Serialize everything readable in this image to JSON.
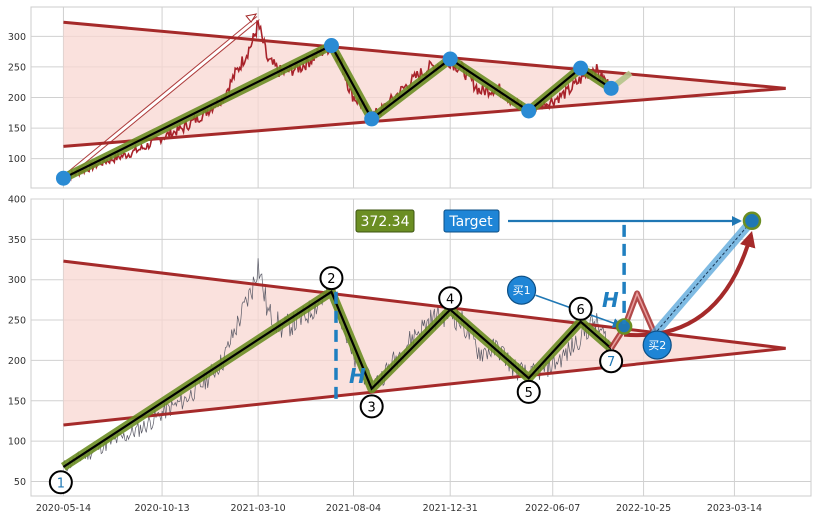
{
  "colors": {
    "price_top": "#a8222a",
    "price_bottom": "#5a5a66",
    "triangle_line": "#a52a2a",
    "triangle_fill": "#f8d7d2",
    "zigzag_outer": "#6b8e23",
    "zigzag_inner": "#000000",
    "pivot_top": "#2a8bd4",
    "accent_blue": "#1f77b4",
    "dash_blue": "#1f7fc0",
    "box_green": "#6b8e23",
    "box_blue": "#1f85d6",
    "grid": "#d0d0d0"
  },
  "chart_data": [
    {
      "type": "line",
      "panel": "top",
      "ylim": [
        52,
        348
      ],
      "x": [
        "2020-05-14",
        "2020-06-15",
        "2020-07-15",
        "2020-08-15",
        "2020-09-15",
        "2020-10-13",
        "2020-11-15",
        "2020-12-15",
        "2021-01-15",
        "2021-02-01",
        "2021-02-15",
        "2021-03-01",
        "2021-03-10",
        "2021-03-25",
        "2021-04-15",
        "2021-05-15",
        "2021-06-15",
        "2021-07-01",
        "2021-07-15",
        "2021-08-01",
        "2021-08-15",
        "2021-09-01",
        "2021-09-15",
        "2021-10-01",
        "2021-10-20",
        "2021-11-10",
        "2021-12-01",
        "2021-12-31",
        "2022-01-20",
        "2022-02-15",
        "2022-03-15",
        "2022-04-10",
        "2022-05-01",
        "2022-06-07",
        "2022-07-01",
        "2022-07-20",
        "2022-08-10",
        "2022-08-25",
        "2022-09-05"
      ],
      "series": [
        {
          "role": "price",
          "values": [
            68,
            82,
            95,
            105,
            118,
            135,
            150,
            172,
            200,
            235,
            262,
            290,
            320,
            260,
            240,
            250,
            275,
            285,
            260,
            205,
            190,
            170,
            178,
            195,
            215,
            235,
            250,
            260,
            245,
            210,
            215,
            190,
            180,
            195,
            210,
            230,
            248,
            230,
            215
          ]
        }
      ],
      "zigzag": {
        "x": [
          "2020-05-14",
          "2021-07-01",
          "2021-09-01",
          "2021-12-31",
          "2022-05-01",
          "2022-07-20",
          "2022-09-05"
        ],
        "values": [
          68,
          285,
          165,
          263,
          178,
          248,
          215
        ]
      },
      "pivots": {
        "x": [
          "2020-05-14",
          "2021-07-01",
          "2021-09-01",
          "2021-12-31",
          "2022-05-01",
          "2022-07-20",
          "2022-09-05"
        ],
        "values": [
          68,
          285,
          165,
          263,
          178,
          248,
          215
        ]
      },
      "triangle": {
        "upper": {
          "x": [
            "2020-05-14",
            "2023-06-01"
          ],
          "values": [
            323,
            215
          ]
        },
        "lower": {
          "x": [
            "2020-05-14",
            "2023-06-01"
          ],
          "values": [
            120,
            215
          ]
        }
      },
      "yticks": [
        100,
        150,
        200,
        250,
        300
      ]
    },
    {
      "type": "line",
      "panel": "bottom",
      "ylim": [
        32,
        400
      ],
      "x": [
        "2020-05-14",
        "2020-06-15",
        "2020-07-15",
        "2020-08-15",
        "2020-09-15",
        "2020-10-13",
        "2020-11-15",
        "2020-12-15",
        "2021-01-15",
        "2021-02-01",
        "2021-02-15",
        "2021-03-01",
        "2021-03-10",
        "2021-03-25",
        "2021-04-15",
        "2021-05-15",
        "2021-06-15",
        "2021-07-01",
        "2021-07-15",
        "2021-08-01",
        "2021-08-15",
        "2021-09-01",
        "2021-09-15",
        "2021-10-01",
        "2021-10-20",
        "2021-11-10",
        "2021-12-01",
        "2021-12-31",
        "2022-01-20",
        "2022-02-15",
        "2022-03-15",
        "2022-04-10",
        "2022-05-01",
        "2022-06-07",
        "2022-07-01",
        "2022-07-20",
        "2022-08-10",
        "2022-08-25",
        "2022-09-05"
      ],
      "series": [
        {
          "role": "price",
          "values": [
            68,
            82,
            95,
            105,
            118,
            135,
            150,
            172,
            200,
            235,
            262,
            290,
            320,
            260,
            240,
            250,
            275,
            285,
            260,
            205,
            190,
            170,
            178,
            195,
            215,
            235,
            250,
            260,
            245,
            210,
            215,
            190,
            180,
            195,
            210,
            230,
            248,
            230,
            215
          ]
        }
      ],
      "zigzag": {
        "x": [
          "2020-05-14",
          "2021-07-01",
          "2021-09-01",
          "2021-12-31",
          "2022-05-01",
          "2022-07-20",
          "2022-09-05"
        ],
        "values": [
          68,
          285,
          165,
          263,
          178,
          248,
          215
        ]
      },
      "pivot_labels": [
        {
          "label": "1",
          "x": "2020-05-10",
          "value": 49
        },
        {
          "label": "2",
          "x": "2021-07-01",
          "value": 302
        },
        {
          "label": "3",
          "x": "2021-09-01",
          "value": 143
        },
        {
          "label": "4",
          "x": "2021-12-31",
          "value": 277
        },
        {
          "label": "5",
          "x": "2022-05-01",
          "value": 161
        },
        {
          "label": "6",
          "x": "2022-07-20",
          "value": 264
        },
        {
          "label": "7",
          "x": "2022-09-05",
          "value": 199
        }
      ],
      "triangle": {
        "upper": {
          "x": [
            "2020-05-14",
            "2023-06-01"
          ],
          "values": [
            323,
            215
          ]
        },
        "lower": {
          "x": [
            "2020-05-14",
            "2023-06-01"
          ],
          "values": [
            120,
            215
          ]
        }
      },
      "projection": {
        "start": {
          "x": "2022-09-25",
          "value": 240
        },
        "target": {
          "x": "2023-04-10",
          "value": 373
        }
      },
      "dashed_heights": [
        {
          "x": "2021-07-08",
          "y1": 285,
          "y2": 152
        },
        {
          "x": "2022-09-25",
          "y1": 368,
          "y2": 245
        }
      ],
      "buy_points": [
        {
          "label": "买1",
          "x": "2022-04-20",
          "value": 287
        },
        {
          "label": "买2",
          "x": "2022-11-15",
          "value": 219
        }
      ],
      "annotations": [
        {
          "text": "H",
          "x": "2021-07-28",
          "value": 172
        },
        {
          "text": "H",
          "x": "2022-08-22",
          "value": 266
        }
      ],
      "value_box": {
        "text": "372.34"
      },
      "target_box": {
        "text": "Target"
      },
      "xticks": [
        "2020-05-14",
        "2020-10-13",
        "2021-03-10",
        "2021-08-04",
        "2021-12-31",
        "2022-06-07",
        "2022-10-25",
        "2023-03-14"
      ],
      "yticks": [
        50,
        100,
        150,
        200,
        250,
        300,
        350,
        400
      ]
    }
  ]
}
